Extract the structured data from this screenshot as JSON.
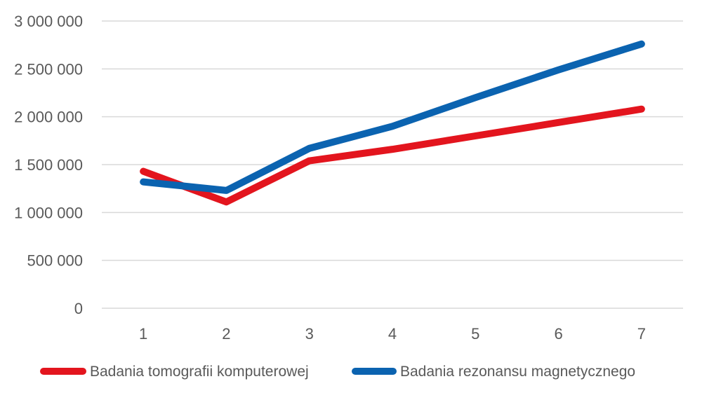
{
  "chart_data": {
    "type": "line",
    "title": "",
    "xlabel": "",
    "ylabel": "",
    "categories": [
      "1",
      "2",
      "3",
      "4",
      "5",
      "6",
      "7"
    ],
    "ylim": [
      0,
      3000000
    ],
    "y_ticks": [
      0,
      500000,
      1000000,
      1500000,
      2000000,
      2500000,
      3000000
    ],
    "y_tick_labels": [
      "0",
      "500 000",
      "1 000 000",
      "1 500 000",
      "2 000 000",
      "2 500 000",
      "3 000 000"
    ],
    "grid": true,
    "legend_position": "bottom",
    "series": [
      {
        "name": "Badania tomografii komputerowej",
        "color": "#e3151e",
        "values": [
          1430000,
          1110000,
          1540000,
          1660000,
          1800000,
          1940000,
          2080000
        ]
      },
      {
        "name": "Badania rezonansu magnetycznego",
        "color": "#0b63b0",
        "values": [
          1320000,
          1230000,
          1670000,
          1900000,
          2200000,
          2490000,
          2760000
        ]
      }
    ]
  }
}
